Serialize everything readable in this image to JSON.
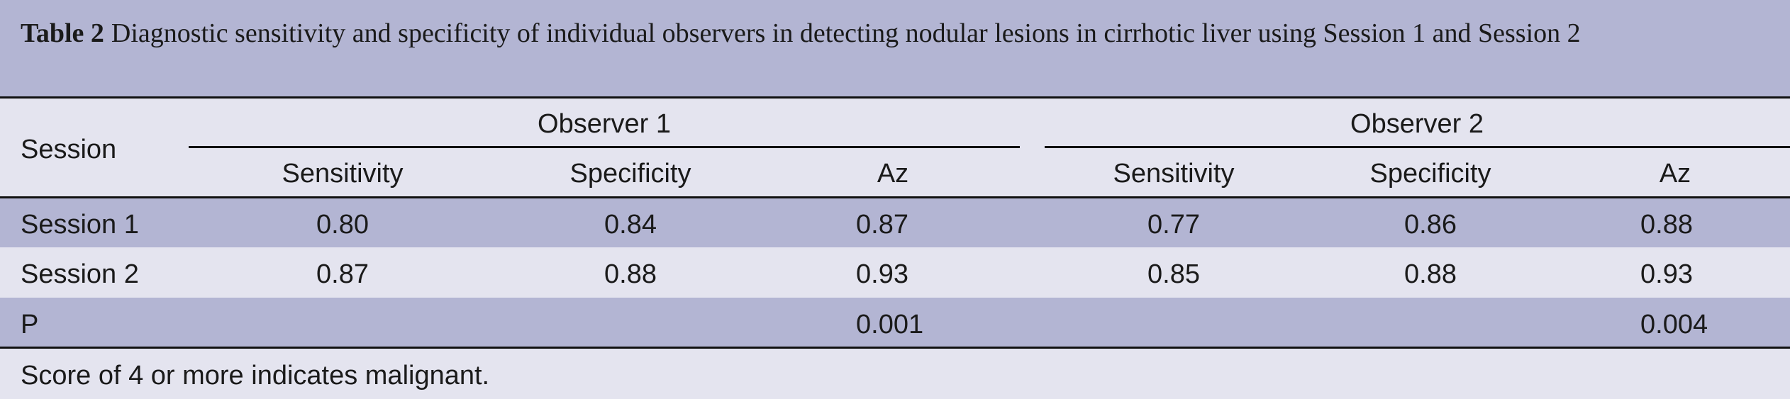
{
  "caption": {
    "label": "Table 2",
    "text": "Diagnostic sensitivity and specificity of individual observers in detecting nodular lesions in cirrhotic liver using Session 1 and Session 2"
  },
  "table": {
    "header": {
      "session": "Session",
      "groups": [
        "Observer 1",
        "Observer 2"
      ],
      "columns": [
        "Sensitivity",
        "Specificity",
        "Az",
        "Sensitivity",
        "Specificity",
        "Az"
      ]
    },
    "rows": [
      [
        "Session 1",
        "0.80",
        "0.84",
        "0.87",
        "0.77",
        "0.86",
        "0.88"
      ],
      [
        "Session 2",
        "0.87",
        "0.88",
        "0.93",
        "0.85",
        "0.88",
        "0.93"
      ],
      [
        "P",
        null,
        null,
        "0.001",
        null,
        null,
        "0.004"
      ]
    ]
  },
  "footnote": "Score of 4 or more indicates malignant."
}
